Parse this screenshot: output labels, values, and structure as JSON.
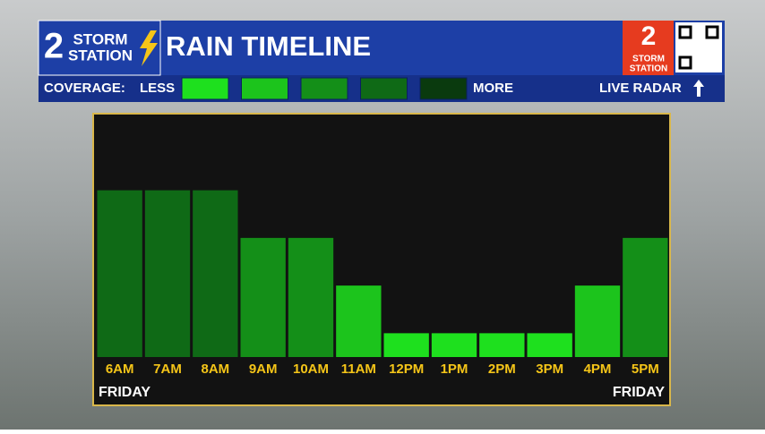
{
  "header": {
    "logo_number": "2",
    "logo_line1": "STORM",
    "logo_line2": "STATION",
    "side_logo_number": "2",
    "side_logo_line1": "STORM",
    "side_logo_line2": "STATION",
    "coverage_label": "COVERAGE:",
    "less_label": "LESS",
    "more_label": "MORE",
    "live_radar": "LIVE RADAR"
  },
  "chart_data": {
    "type": "bar",
    "title": "RAIN TIMELINE",
    "categories": [
      "6AM",
      "7AM",
      "8AM",
      "9AM",
      "10AM",
      "11AM",
      "12PM",
      "1PM",
      "2PM",
      "3PM",
      "4PM",
      "5PM"
    ],
    "values": [
      4,
      4,
      4,
      3,
      3,
      2,
      1,
      1,
      1,
      1,
      2,
      3
    ],
    "coverage_colors": [
      "#1ee01e",
      "#1cc41c",
      "#148f18",
      "#0f6a16",
      "#0a3a0e"
    ],
    "ylim": [
      0.5,
      4.5
    ],
    "day_labels": [
      "FRIDAY",
      "FRIDAY"
    ]
  }
}
